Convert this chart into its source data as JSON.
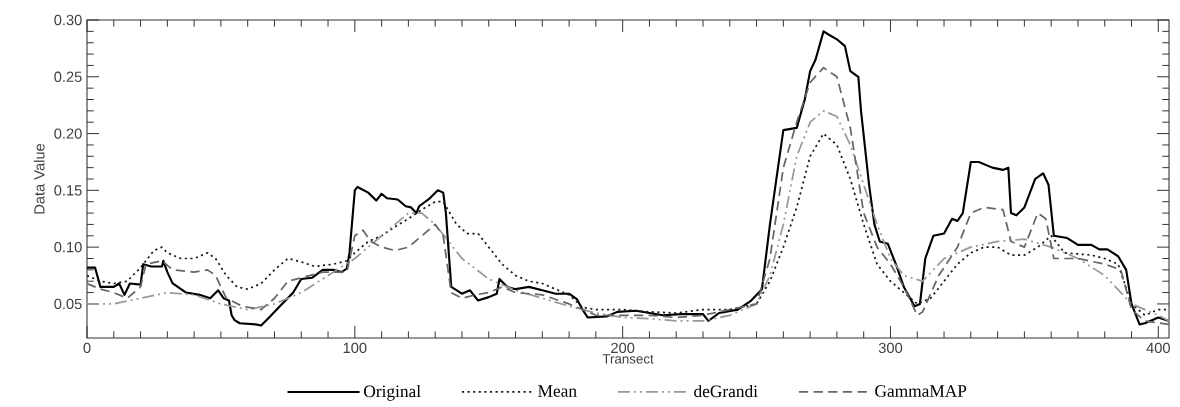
{
  "chart_data": {
    "type": "line",
    "xlabel": "Transect",
    "ylabel": "Data Value",
    "xlim": [
      0,
      404
    ],
    "ylim": [
      0.02,
      0.3
    ],
    "xticks": [
      0,
      100,
      200,
      300,
      400
    ],
    "yticks": [
      {
        "value": 0.05,
        "label": "0.05"
      },
      {
        "value": 0.1,
        "label": "0.10"
      },
      {
        "value": 0.15,
        "label": "0.15"
      },
      {
        "value": 0.2,
        "label": "0.20"
      },
      {
        "value": 0.25,
        "label": "0.25"
      },
      {
        "value": 0.3,
        "label": "0.30"
      }
    ],
    "legend": "bottom",
    "grid": false,
    "marker": "none",
    "series": [
      {
        "name": "Original",
        "color": "#000000",
        "line_style": "solid",
        "x": [
          0,
          3,
          5,
          10,
          12,
          14,
          16,
          20,
          21,
          24,
          28,
          28.5,
          30,
          32,
          37,
          42,
          46,
          49,
          51,
          53,
          54,
          55,
          57,
          63,
          65,
          68,
          72,
          77,
          80,
          84,
          88,
          92,
          95,
          97,
          98,
          100,
          101,
          105,
          108,
          110,
          112,
          116,
          119,
          121,
          123,
          124,
          128,
          131,
          133,
          134,
          136,
          140,
          143,
          146,
          150,
          153,
          154,
          157,
          160,
          165,
          170,
          175,
          180,
          183,
          185,
          187,
          194,
          198,
          205,
          215,
          222,
          230,
          232,
          236,
          243,
          248,
          252,
          253,
          255,
          258,
          260,
          265,
          268,
          270,
          272,
          275,
          277,
          280,
          283,
          285,
          288,
          289,
          292,
          294,
          296,
          299,
          302,
          305,
          309,
          311,
          313,
          316,
          320,
          323,
          325,
          327,
          330,
          333,
          338,
          342,
          344,
          345,
          347,
          350,
          354,
          357,
          359,
          361,
          366,
          370,
          375,
          378,
          381,
          385,
          388,
          390,
          393,
          395,
          400,
          404
        ],
        "values": [
          0.082,
          0.082,
          0.065,
          0.065,
          0.068,
          0.058,
          0.068,
          0.067,
          0.085,
          0.083,
          0.083,
          0.088,
          0.078,
          0.068,
          0.06,
          0.058,
          0.055,
          0.062,
          0.055,
          0.053,
          0.04,
          0.036,
          0.033,
          0.032,
          0.031,
          0.038,
          0.048,
          0.06,
          0.072,
          0.073,
          0.08,
          0.08,
          0.078,
          0.081,
          0.095,
          0.15,
          0.153,
          0.148,
          0.141,
          0.147,
          0.143,
          0.142,
          0.136,
          0.135,
          0.13,
          0.136,
          0.143,
          0.15,
          0.148,
          0.13,
          0.065,
          0.059,
          0.062,
          0.053,
          0.056,
          0.059,
          0.072,
          0.065,
          0.063,
          0.065,
          0.062,
          0.059,
          0.059,
          0.054,
          0.045,
          0.038,
          0.039,
          0.043,
          0.044,
          0.04,
          0.041,
          0.041,
          0.035,
          0.042,
          0.045,
          0.053,
          0.063,
          0.082,
          0.12,
          0.17,
          0.203,
          0.205,
          0.23,
          0.255,
          0.265,
          0.29,
          0.287,
          0.283,
          0.277,
          0.255,
          0.25,
          0.22,
          0.155,
          0.12,
          0.105,
          0.103,
          0.085,
          0.065,
          0.048,
          0.05,
          0.09,
          0.11,
          0.112,
          0.125,
          0.123,
          0.13,
          0.175,
          0.175,
          0.17,
          0.168,
          0.17,
          0.13,
          0.128,
          0.135,
          0.16,
          0.165,
          0.155,
          0.11,
          0.108,
          0.102,
          0.102,
          0.098,
          0.098,
          0.092,
          0.08,
          0.05,
          0.032,
          0.033,
          0.038,
          0.035
        ]
      },
      {
        "name": "Mean",
        "color": "#1a1a1a",
        "line_style": "dotted",
        "x": [
          0,
          5,
          10,
          15,
          20,
          25,
          28,
          30,
          35,
          40,
          45,
          48,
          52,
          56,
          60,
          65,
          70,
          75,
          80,
          85,
          92,
          97,
          100,
          105,
          110,
          115,
          120,
          125,
          130,
          133,
          138,
          142,
          146,
          150,
          155,
          160,
          165,
          170,
          175,
          180,
          185,
          190,
          200,
          210,
          220,
          230,
          240,
          250,
          255,
          260,
          265,
          270,
          275,
          280,
          285,
          290,
          295,
          300,
          305,
          310,
          315,
          320,
          325,
          330,
          335,
          340,
          345,
          350,
          355,
          360,
          365,
          370,
          375,
          380,
          385,
          390,
          395,
          400,
          404
        ],
        "values": [
          0.075,
          0.07,
          0.068,
          0.07,
          0.082,
          0.097,
          0.1,
          0.095,
          0.09,
          0.09,
          0.095,
          0.09,
          0.075,
          0.065,
          0.063,
          0.068,
          0.08,
          0.09,
          0.087,
          0.083,
          0.085,
          0.088,
          0.095,
          0.105,
          0.11,
          0.118,
          0.125,
          0.133,
          0.14,
          0.14,
          0.12,
          0.112,
          0.112,
          0.1,
          0.085,
          0.075,
          0.07,
          0.068,
          0.063,
          0.058,
          0.047,
          0.045,
          0.045,
          0.043,
          0.042,
          0.045,
          0.045,
          0.05,
          0.07,
          0.1,
          0.135,
          0.18,
          0.2,
          0.19,
          0.16,
          0.12,
          0.085,
          0.07,
          0.06,
          0.05,
          0.055,
          0.07,
          0.085,
          0.095,
          0.1,
          0.1,
          0.093,
          0.093,
          0.1,
          0.11,
          0.095,
          0.094,
          0.093,
          0.09,
          0.085,
          0.05,
          0.04,
          0.045,
          0.045
        ]
      },
      {
        "name": "deGrandi",
        "color": "#999999",
        "line_style": "dashdot",
        "x": [
          0,
          10,
          20,
          30,
          40,
          50,
          60,
          70,
          80,
          90,
          100,
          110,
          120,
          125,
          130,
          135,
          140,
          150,
          160,
          170,
          180,
          190,
          200,
          210,
          220,
          230,
          240,
          250,
          255,
          260,
          265,
          270,
          275,
          280,
          285,
          290,
          295,
          300,
          305,
          312,
          320,
          330,
          340,
          350,
          360,
          370,
          380,
          390,
          400,
          404
        ],
        "values": [
          0.05,
          0.05,
          0.055,
          0.06,
          0.058,
          0.05,
          0.045,
          0.05,
          0.06,
          0.075,
          0.09,
          0.11,
          0.13,
          0.13,
          0.12,
          0.105,
          0.09,
          0.072,
          0.062,
          0.055,
          0.048,
          0.042,
          0.038,
          0.037,
          0.035,
          0.035,
          0.04,
          0.05,
          0.075,
          0.12,
          0.18,
          0.21,
          0.22,
          0.215,
          0.19,
          0.155,
          0.12,
          0.09,
          0.075,
          0.07,
          0.09,
          0.1,
          0.105,
          0.107,
          0.1,
          0.09,
          0.075,
          0.05,
          0.04,
          0.035
        ]
      },
      {
        "name": "GammaMAP",
        "color": "#666666",
        "line_style": "dashed",
        "x": [
          0,
          5,
          10,
          15,
          20,
          22,
          28,
          32,
          40,
          45,
          48,
          52,
          58,
          65,
          70,
          75,
          80,
          88,
          97,
          100,
          103,
          106,
          110,
          115,
          120,
          125,
          130,
          133,
          136,
          140,
          145,
          150,
          155,
          160,
          170,
          180,
          190,
          200,
          210,
          220,
          230,
          240,
          250,
          255,
          260,
          265,
          270,
          275,
          280,
          285,
          290,
          295,
          300,
          305,
          310,
          312,
          318,
          325,
          330,
          335,
          342,
          345,
          350,
          355,
          358,
          361,
          370,
          380,
          386,
          390,
          395,
          404
        ],
        "values": [
          0.068,
          0.063,
          0.06,
          0.055,
          0.065,
          0.085,
          0.088,
          0.08,
          0.078,
          0.08,
          0.075,
          0.055,
          0.048,
          0.045,
          0.055,
          0.07,
          0.073,
          0.078,
          0.078,
          0.11,
          0.115,
          0.105,
          0.1,
          0.097,
          0.1,
          0.11,
          0.12,
          0.11,
          0.06,
          0.055,
          0.058,
          0.06,
          0.065,
          0.06,
          0.058,
          0.05,
          0.04,
          0.04,
          0.04,
          0.038,
          0.04,
          0.045,
          0.05,
          0.09,
          0.17,
          0.21,
          0.245,
          0.258,
          0.25,
          0.205,
          0.13,
          0.1,
          0.085,
          0.065,
          0.04,
          0.043,
          0.075,
          0.1,
          0.13,
          0.135,
          0.133,
          0.105,
          0.1,
          0.13,
          0.125,
          0.09,
          0.09,
          0.085,
          0.08,
          0.045,
          0.035,
          0.032
        ]
      }
    ]
  }
}
